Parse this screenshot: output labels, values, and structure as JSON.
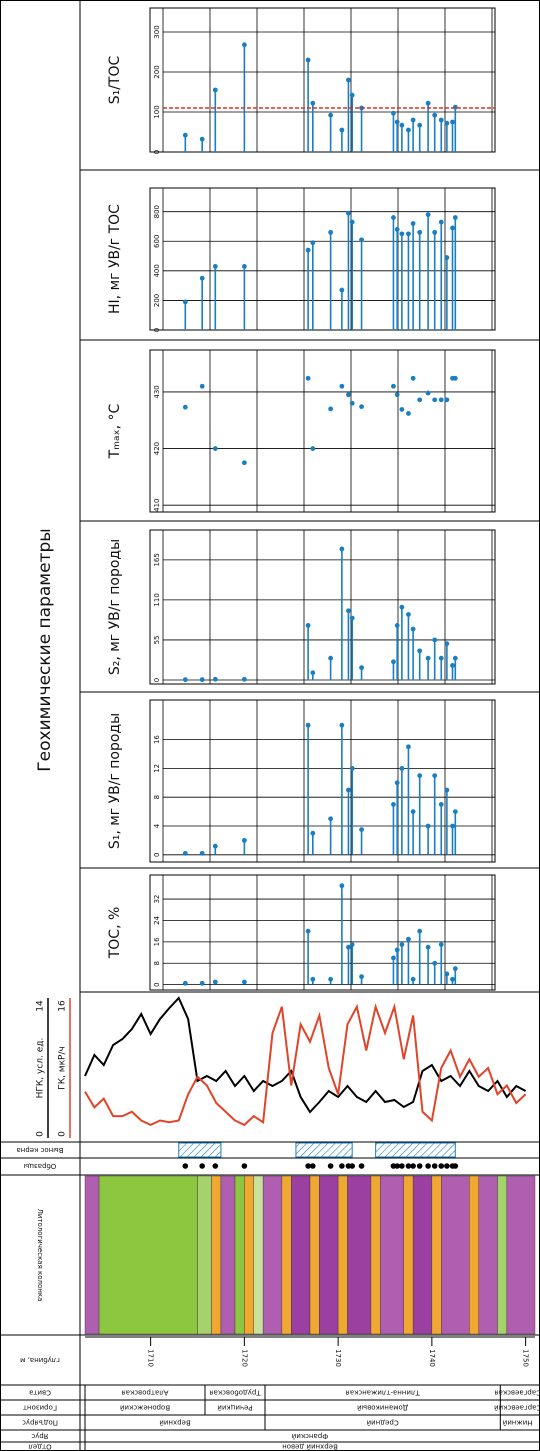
{
  "chart_data": {
    "type": "well-log",
    "title": "Геохимические параметры",
    "depth": {
      "label": "глубина, м",
      "lim": [
        1703,
        1751
      ],
      "ticks": [
        1710,
        1720,
        1730,
        1740,
        1750
      ]
    },
    "samples": {
      "label": "Образцы",
      "depth": [
        1713.7,
        1715.5,
        1716.9,
        1720.0,
        1726.8,
        1727.3,
        1729.2,
        1730.4,
        1731.1,
        1731.5,
        1732.5,
        1735.9,
        1736.3,
        1736.8,
        1737.5,
        1738.0,
        1738.7,
        1739.6,
        1740.3,
        1741.0,
        1741.6,
        1742.2,
        1742.5
      ]
    },
    "core": {
      "label": "Вынос керна",
      "intervals": [
        [
          1713,
          1717.5
        ],
        [
          1725.5,
          1731.5
        ],
        [
          1734,
          1742.5
        ]
      ]
    },
    "panels": [
      {
        "label": "S₁/TOC",
        "type": "stem",
        "color": "#1a7fc1",
        "ylim": [
          0,
          360
        ],
        "yticks": [
          0,
          100,
          200,
          300
        ],
        "values": [
          42,
          32,
          155,
          268,
          230,
          122,
          92,
          55,
          180,
          142,
          110,
          97,
          75,
          67,
          55,
          80,
          67,
          122,
          92,
          80,
          72,
          75,
          112
        ],
        "reference": {
          "value": 110,
          "color": "#e03020"
        }
      },
      {
        "label": "HI, мг УВ/г TOC",
        "type": "stem",
        "color": "#1a7fc1",
        "ylim": [
          0,
          960
        ],
        "yticks": [
          0,
          200,
          400,
          600,
          800
        ],
        "values": [
          190,
          350,
          430,
          430,
          540,
          590,
          660,
          270,
          790,
          730,
          610,
          760,
          680,
          650,
          650,
          720,
          660,
          780,
          660,
          730,
          490,
          690,
          760
        ]
      },
      {
        "label": "Tₘₐₓ, °C",
        "type": "scatter",
        "color": "#1a7fc1",
        "ylim": [
          408.8,
          437.4
        ],
        "yticks": [
          410,
          420,
          430
        ],
        "values": [
          427.3,
          431,
          420,
          417.5,
          432.4,
          420,
          427,
          431,
          429.5,
          428,
          427.4,
          431,
          429.5,
          426.9,
          426.2,
          432.4,
          428.6,
          429.8,
          428.6,
          428.6,
          428.6,
          432.4,
          432.4
        ]
      },
      {
        "label": "S₂, мг УВ/г породы",
        "type": "stem",
        "color": "#1a7fc1",
        "ylim": [
          -5.5,
          206
        ],
        "yticks": [
          0,
          55,
          110,
          165
        ],
        "values": [
          0.5,
          0.5,
          1,
          1,
          75,
          10,
          30,
          180,
          95,
          85,
          17,
          25,
          75,
          100,
          90,
          70,
          40,
          30,
          55,
          30,
          50,
          20,
          30
        ]
      },
      {
        "label": "S₁, мг УВ/г породы",
        "type": "stem",
        "color": "#1a7fc1",
        "ylim": [
          -1,
          21.5
        ],
        "yticks": [
          0,
          4,
          8,
          12,
          16
        ],
        "values": [
          0.2,
          0.2,
          1.2,
          2,
          18,
          3,
          5,
          18,
          9,
          12,
          3.5,
          7,
          10,
          12,
          15,
          6,
          11,
          4,
          11,
          7,
          9,
          4,
          6
        ]
      },
      {
        "label": "TOC, %",
        "type": "stem",
        "color": "#1a7fc1",
        "ylim": [
          -2,
          41
        ],
        "yticks": [
          0,
          8,
          16,
          24,
          32
        ],
        "values": [
          0.5,
          0.5,
          1,
          1,
          20,
          2,
          2,
          37,
          14,
          15,
          3,
          10,
          13,
          15,
          17,
          2,
          20,
          14,
          8,
          15,
          4,
          2,
          6
        ]
      }
    ],
    "logs": {
      "depth": [
        1703,
        1704,
        1705,
        1706,
        1707,
        1708,
        1709,
        1710,
        1711,
        1712,
        1713,
        1714,
        1715,
        1716,
        1717,
        1718,
        1719,
        1720,
        1721,
        1722,
        1723,
        1724,
        1725,
        1726,
        1727,
        1728,
        1729,
        1730,
        1731,
        1732,
        1733,
        1734,
        1735,
        1736,
        1737,
        1738,
        1739,
        1740,
        1741,
        1742,
        1743,
        1744,
        1745,
        1746,
        1747,
        1748,
        1749,
        1750
      ],
      "series": [
        {
          "name": "НГК, усл. ед.",
          "color": "#000000",
          "ylim": [
            0,
            14
          ],
          "values": [
            6.2,
            8.3,
            7.3,
            9.3,
            9.9,
            10.9,
            12.4,
            10.4,
            11.9,
            13,
            14,
            11.9,
            5.7,
            6.2,
            5.7,
            6.7,
            5.2,
            6.2,
            4.7,
            5.7,
            5.2,
            5.7,
            6.7,
            4.1,
            2.6,
            3.6,
            4.7,
            4.1,
            5.2,
            4.1,
            3.6,
            4.7,
            3.6,
            3.8,
            3.1,
            3.6,
            6.7,
            7.3,
            5.7,
            6.2,
            5.2,
            6.7,
            5.2,
            4.7,
            5.7,
            4.1,
            5.2,
            4.7
          ]
        },
        {
          "name": "ГК, мкР/ч",
          "color": "#e0452a",
          "ylim": [
            0,
            16
          ],
          "values": [
            5.3,
            3.5,
            4.5,
            2.5,
            2.5,
            3,
            2,
            1.5,
            2,
            1.8,
            2,
            5,
            7,
            6,
            4,
            3,
            2,
            1.5,
            2.5,
            1.8,
            12,
            15,
            6,
            13,
            11,
            14,
            8,
            5,
            13,
            15,
            10,
            15,
            12,
            15,
            9,
            14,
            3,
            2,
            8,
            10,
            7,
            9,
            7,
            8,
            5,
            6,
            4,
            5
          ]
        }
      ]
    },
    "lithology": {
      "label": "Литологическая колонка",
      "layers": [
        {
          "from": 1703,
          "to": 1704.5,
          "color": "#b05fb0"
        },
        {
          "from": 1704.5,
          "to": 1715,
          "color": "#8dc63f"
        },
        {
          "from": 1715,
          "to": 1716.5,
          "color": "#a6d26b"
        },
        {
          "from": 1716.5,
          "to": 1717.5,
          "color": "#f0a830"
        },
        {
          "from": 1717.5,
          "to": 1719,
          "color": "#b05fb0"
        },
        {
          "from": 1719,
          "to": 1720,
          "color": "#8dc63f"
        },
        {
          "from": 1720,
          "to": 1721,
          "color": "#f0a830"
        },
        {
          "from": 1721,
          "to": 1722,
          "color": "#c8e29b"
        },
        {
          "from": 1722,
          "to": 1724,
          "color": "#b05fb0"
        },
        {
          "from": 1724,
          "to": 1725,
          "color": "#f0a830"
        },
        {
          "from": 1725,
          "to": 1727,
          "color": "#9b3fa0"
        },
        {
          "from": 1727,
          "to": 1728,
          "color": "#f0a830"
        },
        {
          "from": 1728,
          "to": 1730,
          "color": "#9b3fa0"
        },
        {
          "from": 1730,
          "to": 1731,
          "color": "#f0a830"
        },
        {
          "from": 1731,
          "to": 1733.5,
          "color": "#9b3fa0"
        },
        {
          "from": 1733.5,
          "to": 1734.5,
          "color": "#f0a830"
        },
        {
          "from": 1734.5,
          "to": 1737,
          "color": "#b05fb0"
        },
        {
          "from": 1737,
          "to": 1738,
          "color": "#f0a830"
        },
        {
          "from": 1738,
          "to": 1740,
          "color": "#9b3fa0"
        },
        {
          "from": 1740,
          "to": 1741,
          "color": "#f0a830"
        },
        {
          "from": 1741,
          "to": 1744,
          "color": "#b05fb0"
        },
        {
          "from": 1744,
          "to": 1745,
          "color": "#f0a830"
        },
        {
          "from": 1745,
          "to": 1747,
          "color": "#b05fb0"
        },
        {
          "from": 1747,
          "to": 1748,
          "color": "#a6d26b"
        },
        {
          "from": 1748,
          "to": 1751,
          "color": "#b05fb0"
        }
      ]
    },
    "stratigraphy": [
      {
        "label": "Свита",
        "units": [
          {
            "name": "Алатровская",
            "from": 1703,
            "to": 1715.8
          },
          {
            "name": "Трудобовская",
            "from": 1715.8,
            "to": 1722.2
          },
          {
            "name": "Тлинна-тлижанская",
            "from": 1722.2,
            "to": 1747.3
          },
          {
            "name": "Саргаевская",
            "from": 1747.3,
            "to": 1751
          }
        ]
      },
      {
        "label": "Горизонт",
        "units": [
          {
            "name": "Воронежский",
            "from": 1703,
            "to": 1715.8
          },
          {
            "name": "Речицкий",
            "from": 1715.8,
            "to": 1722.2
          },
          {
            "name": "Доманиковый",
            "from": 1722.2,
            "to": 1747.3
          },
          {
            "name": "Саргаевский",
            "from": 1747.3,
            "to": 1751
          }
        ]
      },
      {
        "label": "Подъярус",
        "units": [
          {
            "name": "Верхний",
            "from": 1703,
            "to": 1722.2
          },
          {
            "name": "Средний",
            "from": 1722.2,
            "to": 1747.3
          },
          {
            "name": "Нижний",
            "from": 1747.3,
            "to": 1751
          }
        ]
      },
      {
        "label": "Ярус",
        "units": [
          {
            "name": "Франский",
            "from": 1703,
            "to": 1751
          }
        ]
      },
      {
        "label": "Отдел",
        "units": [
          {
            "name": "Верхний девон",
            "from": 1703,
            "to": 1751
          }
        ]
      }
    ]
  }
}
